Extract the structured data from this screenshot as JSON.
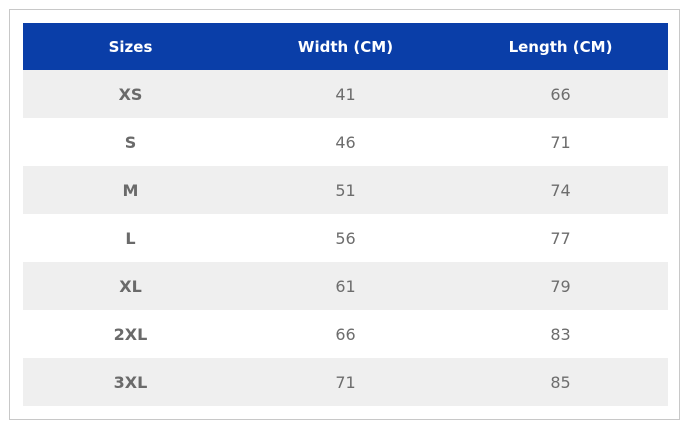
{
  "table": {
    "header": [
      "Sizes",
      "Width (CM)",
      "Length (CM)"
    ],
    "rows": [
      [
        "XS",
        41,
        66
      ],
      [
        "S",
        46,
        71
      ],
      [
        "M",
        51,
        74
      ],
      [
        "L",
        56,
        77
      ],
      [
        "XL",
        61,
        79
      ],
      [
        "2XL",
        66,
        83
      ],
      [
        "3XL",
        71,
        85
      ]
    ]
  }
}
